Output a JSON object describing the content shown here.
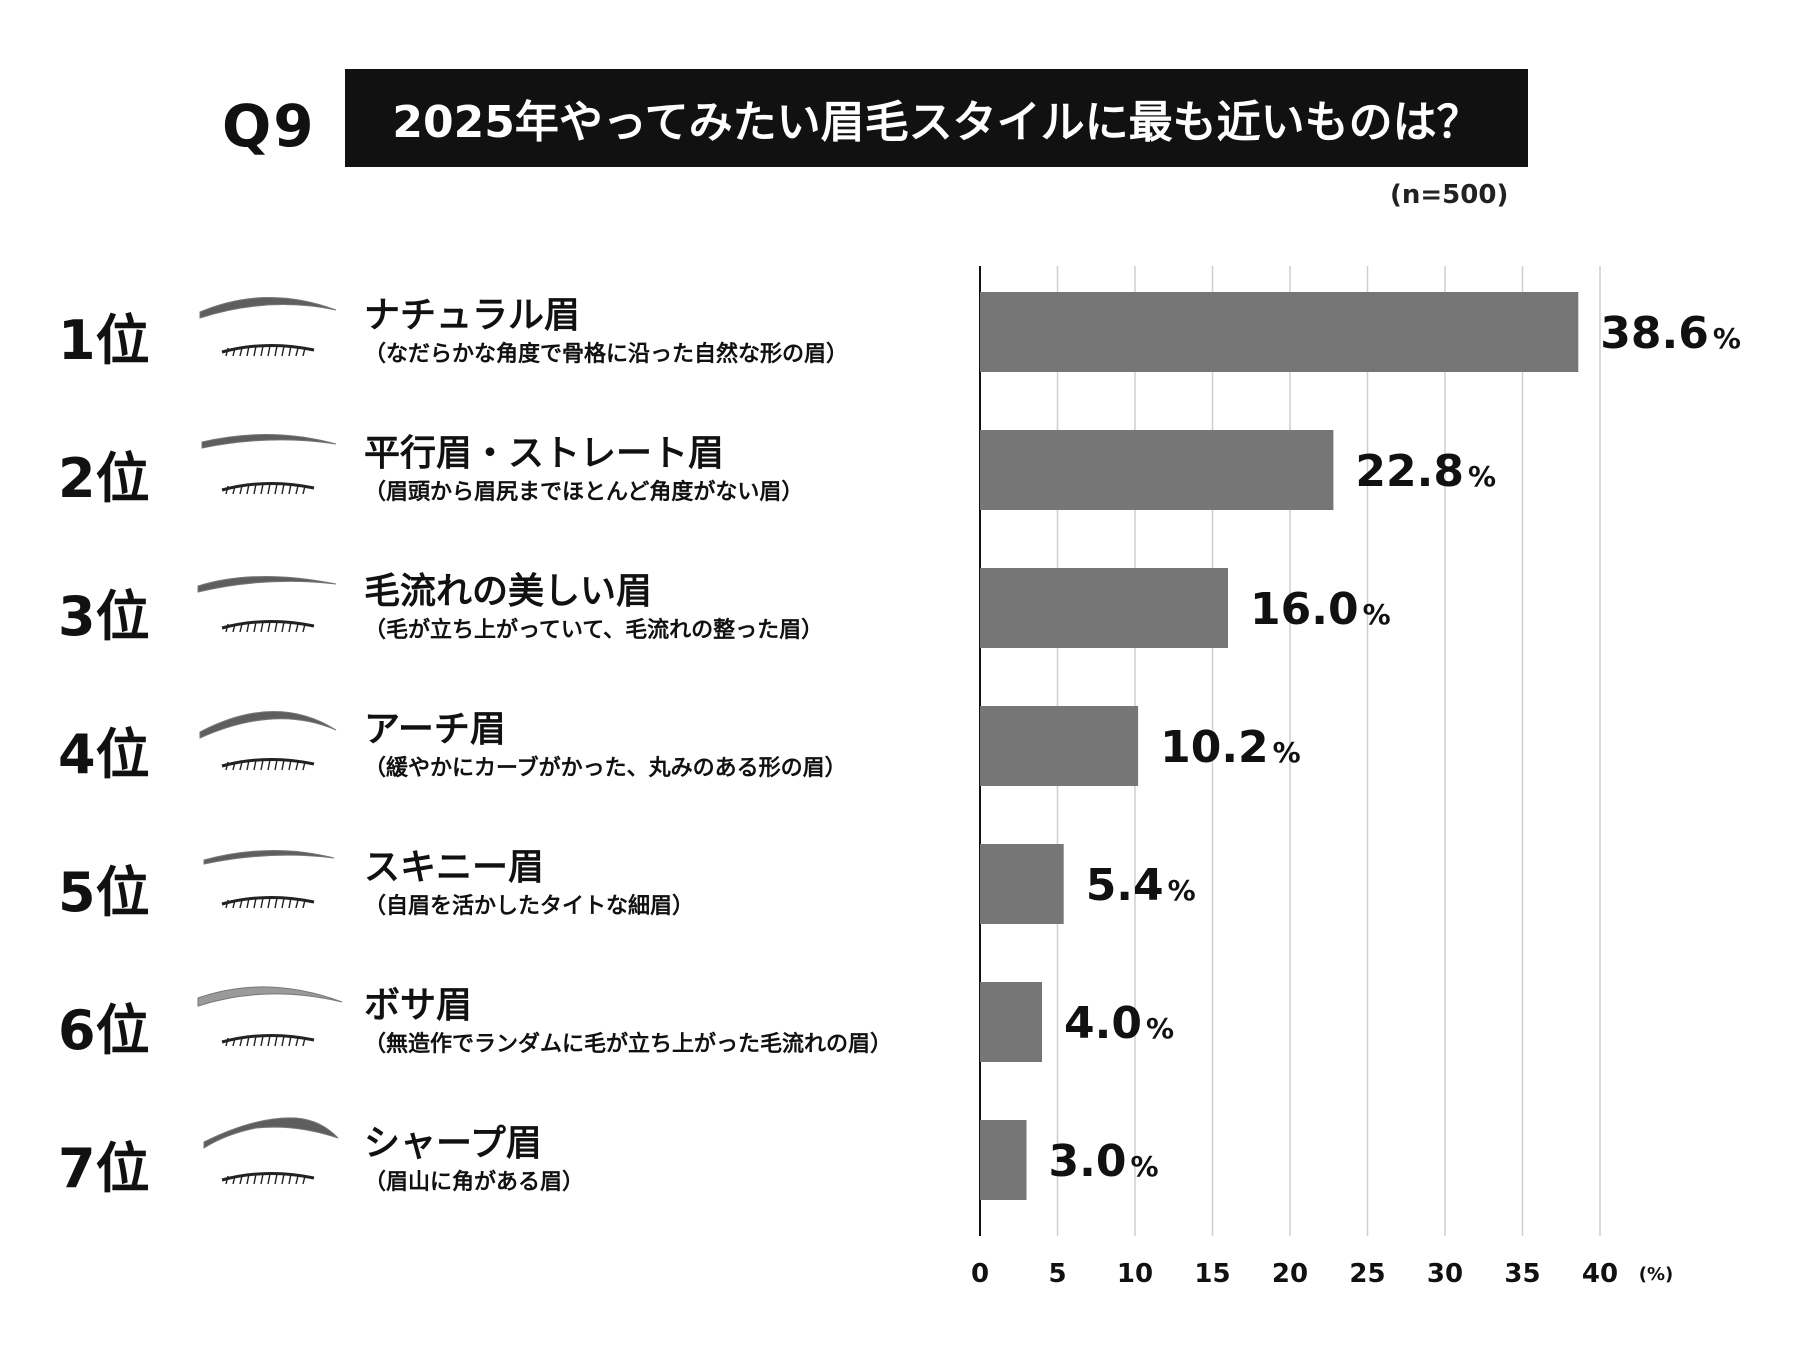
{
  "header": {
    "question": "Q9",
    "title": "2025年やってみたい眉毛スタイルに最も近いものは？",
    "sample": "(n=500)"
  },
  "rankings": [
    {
      "rank": "1位",
      "name": "ナチュラル眉",
      "desc": "（なだらかな角度で骨格に沿った自然な形の眉）"
    },
    {
      "rank": "2位",
      "name": "平行眉・ストレート眉",
      "desc": "（眉頭から眉尻までほとんど角度がない眉）"
    },
    {
      "rank": "3位",
      "name": "毛流れの美しい眉",
      "desc": "（毛が立ち上がっていて、毛流れの整った眉）"
    },
    {
      "rank": "4位",
      "name": "アーチ眉",
      "desc": "（緩やかにカーブがかった、丸みのある形の眉）"
    },
    {
      "rank": "5位",
      "name": "スキニー眉",
      "desc": "（自眉を活かしたタイトな細眉）"
    },
    {
      "rank": "6位",
      "name": "ボサ眉",
      "desc": "（無造作でランダムに毛が立ち上がった毛流れの眉）"
    },
    {
      "rank": "7位",
      "name": "シャープ眉",
      "desc": "（眉山に角がある眉）"
    }
  ],
  "chart_data": {
    "type": "bar",
    "orientation": "horizontal",
    "categories": [
      "ナチュラル眉",
      "平行眉・ストレート眉",
      "毛流れの美しい眉",
      "アーチ眉",
      "スキニー眉",
      "ボサ眉",
      "シャープ眉"
    ],
    "values": [
      38.6,
      22.8,
      16.0,
      10.2,
      5.4,
      4.0,
      3.0
    ],
    "value_labels": [
      "38.6",
      "22.8",
      "16.0",
      "10.2",
      "5.4",
      "4.0",
      "3.0"
    ],
    "value_suffix": "%",
    "xlim": [
      0,
      40
    ],
    "xticks": [
      0,
      5,
      10,
      15,
      20,
      25,
      30,
      35,
      40
    ],
    "xlabel": "(%)",
    "grid": true,
    "bar_color": "#767676",
    "grid_color": "#cfcfcf"
  }
}
